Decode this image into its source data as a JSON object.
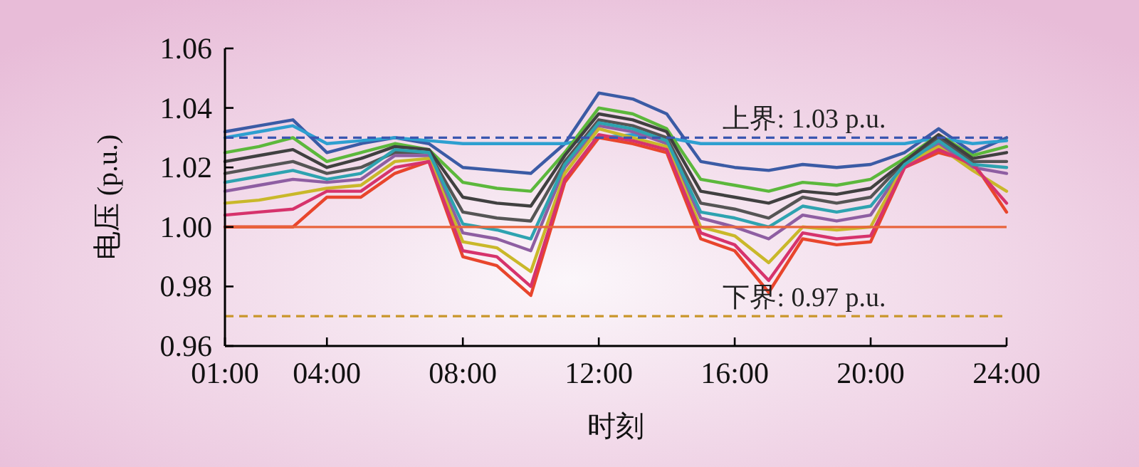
{
  "chart_data": {
    "type": "line",
    "xlabel": "时刻",
    "ylabel": "电压 (p.u.)",
    "x": [
      1,
      2,
      3,
      4,
      5,
      6,
      7,
      8,
      9,
      10,
      11,
      12,
      13,
      14,
      15,
      16,
      17,
      18,
      19,
      20,
      21,
      22,
      23,
      24
    ],
    "xlim": [
      1,
      24
    ],
    "ylim": [
      0.96,
      1.06
    ],
    "xticks": [
      {
        "value": 1,
        "label": "01:00"
      },
      {
        "value": 4,
        "label": "04:00"
      },
      {
        "value": 8,
        "label": "08:00"
      },
      {
        "value": 12,
        "label": "12:00"
      },
      {
        "value": 16,
        "label": "16:00"
      },
      {
        "value": 20,
        "label": "20:00"
      },
      {
        "value": 24,
        "label": "24:00"
      }
    ],
    "yticks": [
      0.96,
      0.98,
      {
        "value": 1,
        "label": "1.00"
      },
      1.02,
      1.04,
      1.06
    ],
    "marker": "none",
    "line_style": "solid",
    "series": [
      {
        "color": "#3b5ba5",
        "values": [
          1.032,
          1.034,
          1.036,
          1.025,
          1.028,
          1.03,
          1.028,
          1.02,
          1.019,
          1.018,
          1.028,
          1.045,
          1.043,
          1.038,
          1.022,
          1.02,
          1.019,
          1.021,
          1.02,
          1.021,
          1.025,
          1.033,
          1.025,
          1.03
        ]
      },
      {
        "color": "#2e9fd0",
        "values": [
          1.03,
          1.032,
          1.034,
          1.028,
          1.029,
          1.03,
          1.029,
          1.028,
          1.028,
          1.028,
          1.028,
          1.03,
          1.031,
          1.03,
          1.028,
          1.028,
          1.028,
          1.028,
          1.028,
          1.028,
          1.028,
          1.03,
          1.028,
          1.029
        ]
      },
      {
        "color": "#e8452c",
        "values": [
          1.0,
          1.0,
          1.0,
          1.01,
          1.01,
          1.018,
          1.022,
          0.99,
          0.987,
          0.977,
          1.015,
          1.03,
          1.028,
          1.025,
          0.996,
          0.992,
          0.978,
          0.996,
          0.994,
          0.995,
          1.02,
          1.025,
          1.022,
          1.005
        ]
      },
      {
        "color": "#5cb83c",
        "values": [
          1.025,
          1.027,
          1.03,
          1.022,
          1.025,
          1.028,
          1.026,
          1.015,
          1.013,
          1.012,
          1.025,
          1.04,
          1.038,
          1.033,
          1.016,
          1.014,
          1.012,
          1.015,
          1.014,
          1.016,
          1.023,
          1.031,
          1.024,
          1.027
        ]
      },
      {
        "color": "#555555",
        "values": [
          1.018,
          1.02,
          1.022,
          1.018,
          1.02,
          1.025,
          1.025,
          1.005,
          1.003,
          1.002,
          1.022,
          1.036,
          1.034,
          1.03,
          1.008,
          1.006,
          1.003,
          1.01,
          1.008,
          1.01,
          1.022,
          1.03,
          1.022,
          1.022
        ]
      },
      {
        "color": "#8e5ea2",
        "values": [
          1.012,
          1.014,
          1.016,
          1.015,
          1.016,
          1.024,
          1.024,
          0.998,
          0.996,
          0.992,
          1.02,
          1.034,
          1.032,
          1.028,
          1.003,
          1.0,
          0.996,
          1.004,
          1.002,
          1.004,
          1.021,
          1.028,
          1.02,
          1.018
        ]
      },
      {
        "color": "#c9b82a",
        "values": [
          1.008,
          1.009,
          1.011,
          1.013,
          1.014,
          1.022,
          1.023,
          0.995,
          0.993,
          0.985,
          1.018,
          1.033,
          1.03,
          1.027,
          1.0,
          0.997,
          0.988,
          1.0,
          0.999,
          1.0,
          1.021,
          1.027,
          1.019,
          1.012
        ]
      },
      {
        "color": "#d6336c",
        "values": [
          1.004,
          1.005,
          1.006,
          1.012,
          1.012,
          1.02,
          1.022,
          0.992,
          0.99,
          0.98,
          1.016,
          1.031,
          1.029,
          1.026,
          0.998,
          0.994,
          0.982,
          0.998,
          0.996,
          0.997,
          1.02,
          1.026,
          1.021,
          1.008
        ]
      },
      {
        "color": "#404040",
        "values": [
          1.022,
          1.024,
          1.026,
          1.02,
          1.023,
          1.027,
          1.026,
          1.01,
          1.008,
          1.007,
          1.024,
          1.038,
          1.036,
          1.032,
          1.012,
          1.01,
          1.008,
          1.012,
          1.011,
          1.013,
          1.022,
          1.031,
          1.023,
          1.025
        ]
      },
      {
        "color": "#2ea3b0",
        "values": [
          1.015,
          1.017,
          1.019,
          1.016,
          1.018,
          1.026,
          1.025,
          1.001,
          0.999,
          0.996,
          1.021,
          1.035,
          1.033,
          1.029,
          1.005,
          1.003,
          1.0,
          1.007,
          1.005,
          1.007,
          1.021,
          1.029,
          1.021,
          1.02
        ]
      }
    ],
    "ref_lines": [
      {
        "axis": "y",
        "value": 1.03,
        "label": "上界: 1.03 p.u.",
        "color": "#3a56b0",
        "line_style": "dashed"
      },
      {
        "axis": "y",
        "value": 1.0,
        "color": "#e8643c",
        "line_style": "solid"
      },
      {
        "axis": "y",
        "value": 0.97,
        "label": "下界: 0.97 p.u.",
        "color": "#c9962a",
        "line_style": "dashed"
      }
    ]
  }
}
